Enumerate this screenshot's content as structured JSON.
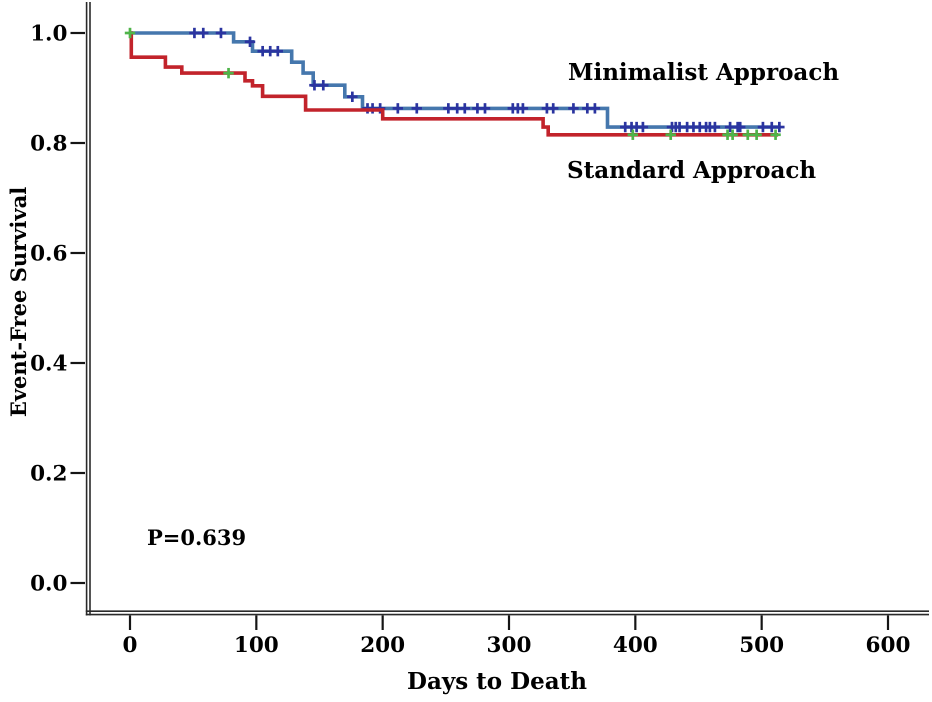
{
  "figure": {
    "background": "#ffffff",
    "axis_color": "#2a2a2a",
    "tick_color": "#151515",
    "text_color": "#000000"
  },
  "chart_data": {
    "type": "line",
    "subtype": "kaplan-meier-step",
    "title": "",
    "xlabel": "Days to Death",
    "ylabel": "Event-Free Survival",
    "annotation": "P=0.639",
    "xlim": [
      0,
      600
    ],
    "ylim": [
      0.0,
      1.0
    ],
    "x_ticks": [
      0,
      100,
      200,
      300,
      400,
      500,
      600
    ],
    "y_ticks": [
      1.0,
      0.8,
      0.6,
      0.4,
      0.2,
      0.0
    ],
    "grid": false,
    "legend_position": "inline-labels",
    "series": [
      {
        "name": "Minimalist Approach",
        "color": "#4577ad",
        "censor_color": "#2b34a0",
        "steps": [
          [
            0,
            1.0
          ],
          [
            82,
            0.984
          ],
          [
            97,
            0.967
          ],
          [
            128,
            0.947
          ],
          [
            137,
            0.927
          ],
          [
            145,
            0.905
          ],
          [
            170,
            0.884
          ],
          [
            184,
            0.863
          ],
          [
            378,
            0.829
          ],
          [
            515,
            0.829
          ]
        ],
        "censor_days": [
          51,
          58,
          72,
          95,
          105,
          111,
          117,
          146,
          153,
          176,
          188,
          192,
          198,
          212,
          227,
          252,
          259,
          265,
          275,
          281,
          303,
          307,
          311,
          330,
          335,
          351,
          362,
          368,
          392,
          397,
          401,
          406,
          429,
          432,
          435,
          441,
          446,
          451,
          456,
          459,
          463,
          475,
          481,
          483,
          501,
          508,
          514
        ]
      },
      {
        "name": "Standard Approach",
        "color": "#c2232b",
        "censor_color": "#4fb449",
        "steps": [
          [
            0,
            1.0
          ],
          [
            1,
            0.956
          ],
          [
            28,
            0.938
          ],
          [
            41,
            0.927
          ],
          [
            91,
            0.913
          ],
          [
            97,
            0.904
          ],
          [
            105,
            0.885
          ],
          [
            139,
            0.86
          ],
          [
            200,
            0.844
          ],
          [
            327,
            0.829
          ],
          [
            331,
            0.815
          ],
          [
            513,
            0.815
          ]
        ],
        "censor_days": [
          0,
          78,
          398,
          428,
          473,
          477,
          489,
          496,
          511
        ]
      }
    ]
  }
}
